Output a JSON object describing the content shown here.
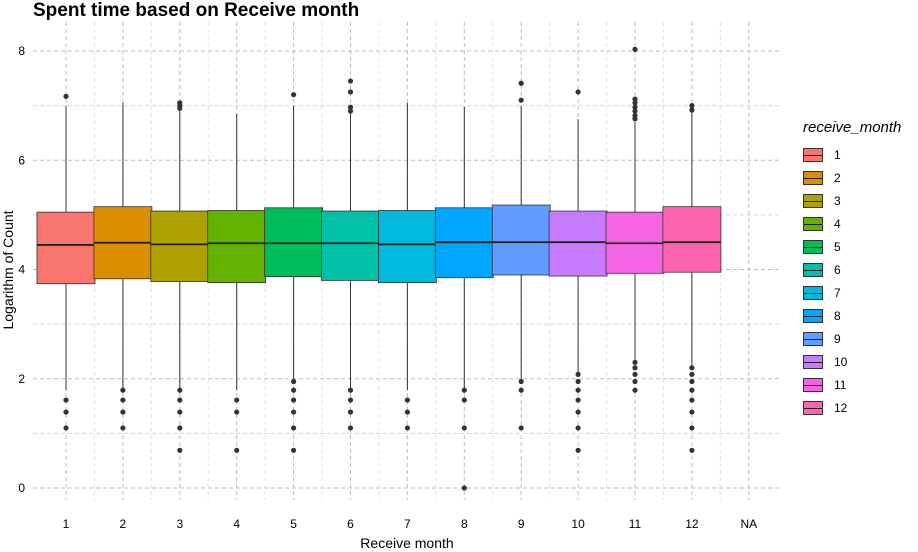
{
  "chart_data": {
    "type": "boxplot",
    "title": "Spent time based on Receive month",
    "xlabel": "Receive month",
    "ylabel": "Logarithm of Count",
    "categories": [
      "1",
      "2",
      "3",
      "4",
      "5",
      "6",
      "7",
      "8",
      "9",
      "10",
      "11",
      "12",
      "NA"
    ],
    "y_ticks": [
      0,
      2,
      4,
      6,
      8
    ],
    "ylim": [
      -0.15,
      8.3
    ],
    "grid": "dashed",
    "legend": {
      "title": "receive_month",
      "position": "right"
    },
    "series": [
      {
        "name": "1",
        "color": "#F8766D",
        "q1": 3.74,
        "median": 4.45,
        "q3": 5.05,
        "whisker_low": 1.79,
        "whisker_high": 7.0,
        "outliers": [
          7.17,
          1.61,
          1.39,
          1.1
        ]
      },
      {
        "name": "2",
        "color": "#DB8E00",
        "q1": 3.83,
        "median": 4.49,
        "q3": 5.15,
        "whisker_low": 1.79,
        "whisker_high": 7.05,
        "outliers": [
          1.79,
          1.61,
          1.39,
          1.1
        ]
      },
      {
        "name": "3",
        "color": "#AEA200",
        "q1": 3.78,
        "median": 4.46,
        "q3": 5.07,
        "whisker_low": 1.79,
        "whisker_high": 6.9,
        "outliers": [
          7.05,
          7.0,
          6.95,
          1.79,
          1.61,
          1.39,
          1.1,
          0.69
        ]
      },
      {
        "name": "4",
        "color": "#64B200",
        "q1": 3.76,
        "median": 4.48,
        "q3": 5.08,
        "whisker_low": 1.79,
        "whisker_high": 6.85,
        "outliers": [
          1.61,
          1.39,
          0.69
        ]
      },
      {
        "name": "5",
        "color": "#00BD5C",
        "q1": 3.87,
        "median": 4.48,
        "q3": 5.13,
        "whisker_low": 1.95,
        "whisker_high": 7.0,
        "outliers": [
          7.2,
          1.95,
          1.79,
          1.61,
          1.39,
          1.1,
          0.69
        ]
      },
      {
        "name": "6",
        "color": "#00C1A7",
        "q1": 3.8,
        "median": 4.48,
        "q3": 5.07,
        "whisker_low": 1.79,
        "whisker_high": 6.9,
        "outliers": [
          7.45,
          7.25,
          6.97,
          6.9,
          1.79,
          1.61,
          1.39,
          1.1
        ]
      },
      {
        "name": "7",
        "color": "#00BADE",
        "q1": 3.76,
        "median": 4.46,
        "q3": 5.08,
        "whisker_low": 1.79,
        "whisker_high": 7.05,
        "outliers": [
          1.61,
          1.39,
          1.1
        ]
      },
      {
        "name": "8",
        "color": "#00A6FF",
        "q1": 3.85,
        "median": 4.5,
        "q3": 5.13,
        "whisker_low": 1.79,
        "whisker_high": 6.98,
        "outliers": [
          1.79,
          1.61,
          1.1,
          0.0
        ]
      },
      {
        "name": "9",
        "color": "#619CFF",
        "q1": 3.9,
        "median": 4.5,
        "q3": 5.18,
        "whisker_low": 1.95,
        "whisker_high": 7.0,
        "outliers": [
          7.41,
          7.1,
          1.95,
          1.79,
          1.1
        ]
      },
      {
        "name": "10",
        "color": "#C77CFF",
        "q1": 3.88,
        "median": 4.5,
        "q3": 5.07,
        "whisker_low": 2.08,
        "whisker_high": 6.75,
        "outliers": [
          7.25,
          2.08,
          1.95,
          1.79,
          1.61,
          1.39,
          1.1,
          0.69
        ]
      },
      {
        "name": "11",
        "color": "#F564E3",
        "q1": 3.93,
        "median": 4.48,
        "q3": 5.05,
        "whisker_low": 2.3,
        "whisker_high": 6.7,
        "outliers": [
          8.03,
          7.12,
          7.05,
          6.97,
          6.9,
          6.82,
          6.76,
          2.3,
          2.2,
          2.08,
          1.95,
          1.79
        ]
      },
      {
        "name": "12",
        "color": "#FF64B0",
        "q1": 3.95,
        "median": 4.5,
        "q3": 5.15,
        "whisker_low": 2.2,
        "whisker_high": 6.88,
        "outliers": [
          7.0,
          6.92,
          2.2,
          2.08,
          1.95,
          1.79,
          1.61,
          1.39,
          1.1,
          0.69
        ]
      }
    ]
  }
}
